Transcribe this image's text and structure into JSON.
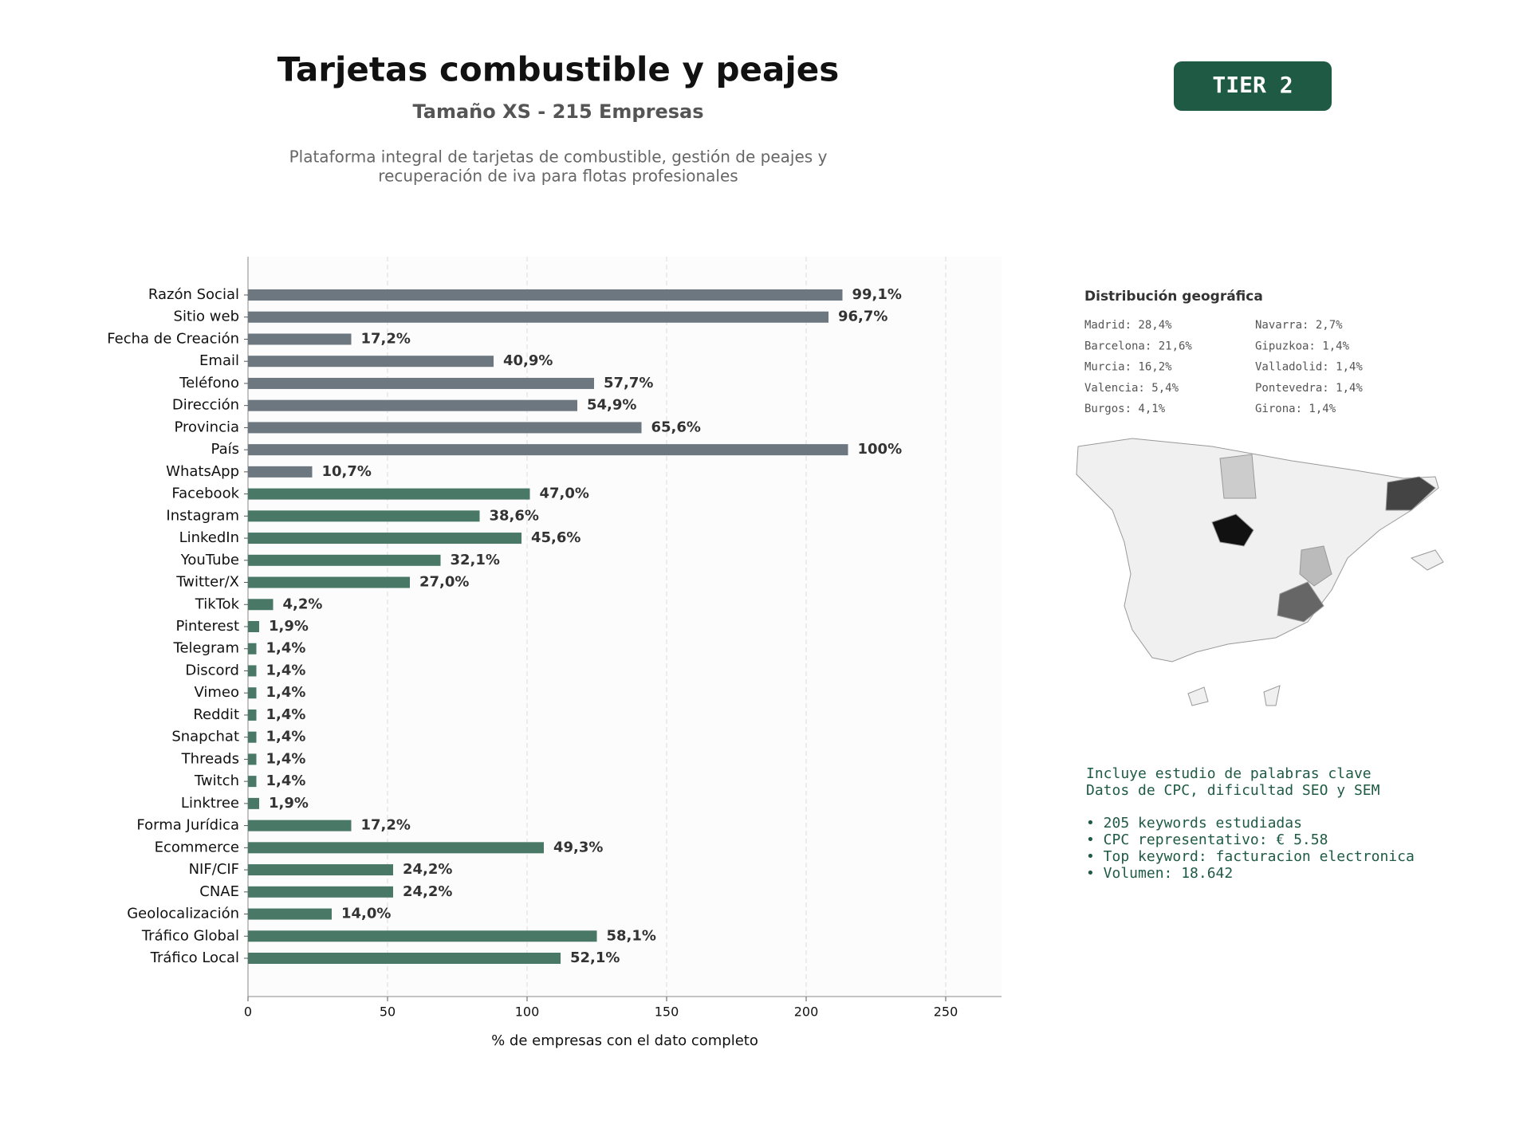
{
  "header": {
    "title": "Tarjetas combustible y peajes",
    "subtitle": "Tamaño XS - 215 Empresas",
    "description": [
      "Plataforma integral de tarjetas de combustible, gestión de peajes y",
      "recuperación de iva para flotas profesionales"
    ]
  },
  "badge": "TIER 2",
  "chart_data": {
    "type": "barh",
    "categories": [
      "Razón Social",
      "Sitio web",
      "Fecha de Creación",
      "Email",
      "Teléfono",
      "Dirección",
      "Provincia",
      "País",
      "WhatsApp",
      "Facebook",
      "Instagram",
      "LinkedIn",
      "YouTube",
      "Twitter/X",
      "TikTok",
      "Pinterest",
      "Telegram",
      "Discord",
      "Vimeo",
      "Reddit",
      "Snapchat",
      "Threads",
      "Twitch",
      "Linktree",
      "Forma Jurídica",
      "Ecommerce",
      "NIF/CIF",
      "CNAE",
      "Geolocalización",
      "Tráfico Global",
      "Tráfico Local"
    ],
    "values": [
      213,
      208,
      37,
      88,
      124,
      118,
      141,
      215,
      23,
      101,
      83,
      98,
      69,
      58,
      9,
      4,
      3,
      3,
      3,
      3,
      3,
      3,
      3,
      4,
      37,
      106,
      52,
      52,
      30,
      125,
      112
    ],
    "value_labels": [
      "99,1%",
      "96,7%",
      "17,2%",
      "40,9%",
      "57,7%",
      "54,9%",
      "65,6%",
      "100%",
      "10,7%",
      "47,0%",
      "38,6%",
      "45,6%",
      "32,1%",
      "27,0%",
      "4,2%",
      "1,9%",
      "1,4%",
      "1,4%",
      "1,4%",
      "1,4%",
      "1,4%",
      "1,4%",
      "1,4%",
      "1,9%",
      "17,2%",
      "49,3%",
      "24,2%",
      "24,2%",
      "14,0%",
      "58,1%",
      "52,1%"
    ],
    "colors": [
      "#6c7780",
      "#6c7780",
      "#6c7780",
      "#6c7780",
      "#6c7780",
      "#6c7780",
      "#6c7780",
      "#6c7780",
      "#6c7780",
      "#4a7866",
      "#4a7866",
      "#4a7866",
      "#4a7866",
      "#4a7866",
      "#4a7866",
      "#4a7866",
      "#4a7866",
      "#4a7866",
      "#4a7866",
      "#4a7866",
      "#4a7866",
      "#4a7866",
      "#4a7866",
      "#4a7866",
      "#4a7866",
      "#4a7866",
      "#4a7866",
      "#4a7866",
      "#4a7866",
      "#4a7866",
      "#4a7866"
    ],
    "xlim": [
      0,
      270
    ],
    "xticks": [
      0,
      50,
      100,
      150,
      200,
      250
    ],
    "grid": true,
    "xlabel": "% de empresas con el dato completo"
  },
  "geo": {
    "title": "Distribución geográfica",
    "items": [
      "Madrid: 28,4%",
      "Barcelona: 21,6%",
      "Murcia: 16,2%",
      "Valencia: 5,4%",
      "Burgos: 4,1%",
      "Navarra: 2,7%",
      "Gipuzkoa: 1,4%",
      "Valladolid: 1,4%",
      "Pontevedra: 1,4%",
      "Girona: 1,4%"
    ]
  },
  "keywords": {
    "intro": [
      "Incluye estudio de palabras clave",
      "Datos de CPC, dificultad SEO y SEM"
    ],
    "bullets": [
      "• 205 keywords estudiadas",
      "• CPC representativo: € 5.58",
      "• Top keyword: facturacion electronica",
      "• Volumen: 18.642"
    ]
  }
}
